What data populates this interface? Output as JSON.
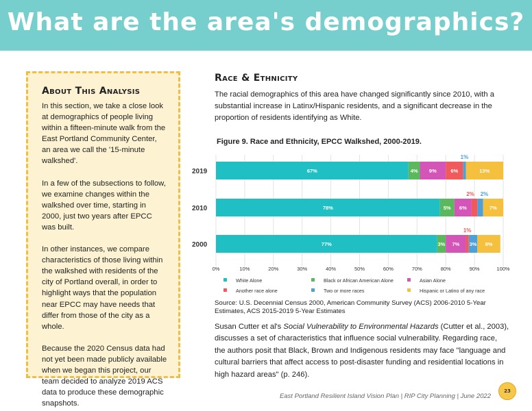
{
  "header": {
    "title": "What are the area's demographics?"
  },
  "sidebar": {
    "heading": "About This Analysis",
    "paragraphs": [
      "In this section, we take a close look at demographics of people living within a fifteen-minute walk from the East Portland Community Center, an area we call the '15-minute walkshed'.",
      "In a few of the subsections to follow, we examine changes within the walkshed over time, starting in 2000, just two years after EPCC was built.",
      "In other instances, we compare characteristics of those living within the walkshed with residents of the city of Portland overall, in order to highlight ways that the population near EPCC may have needs that differ from those of the city as a whole.",
      "Because the 2020 Census data had not yet been made publicly available when we began this project, our team decided to analyze 2019 ACS data to produce these demographic snapshots."
    ]
  },
  "main": {
    "heading": "Race & Ethnicity",
    "intro": "The racial demographics of this area have changed significantly since 2010, with a substantial increase in Latinx/Hispanic residents, and a significant decrease in the proportion of residents identifying as White.",
    "figure_title": "Figure 9.  Race and Ethnicity, EPCC Walkshed, 2000-2019.",
    "source": "Source: U.S. Decennial Census 2000, American Community Survey (ACS) 2006-2010 5-Year Estimates, ACS 2015-2019 5-Year Estimates",
    "body_pre": "Susan Cutter et al's ",
    "body_em": "Social Vulnerability to Environmental Hazards",
    "body_post": " (Cutter et al., 2003), discusses a set of characteristics that influence social vulnerability. Regarding race, the authors posit that Black, Brown and Indigenous residents may face \"language and cultural barriers that affect access to post-disaster funding and residential locations in high hazard areas\" (p. 246)."
  },
  "footer": {
    "text": "East Portland Resilient Island Vision Plan | RIP City Planning | June 2022",
    "page": "23"
  },
  "chart_data": {
    "type": "bar",
    "orientation": "horizontal",
    "stacked": true,
    "title": "Race and Ethnicity, EPCC Walkshed, 2000-2019.",
    "categories": [
      "2019",
      "2010",
      "2000"
    ],
    "xlim": [
      0,
      100
    ],
    "x_ticks": [
      "0%",
      "10%",
      "20%",
      "30%",
      "40%",
      "50%",
      "60%",
      "70%",
      "80%",
      "90%",
      "100%"
    ],
    "series": [
      {
        "name": "White Alone",
        "color": "#1fbfc4",
        "values": [
          67,
          78,
          77
        ],
        "labels": [
          "67%",
          "78%",
          "77%"
        ]
      },
      {
        "name": "Black or African American Alone",
        "color": "#5cb85c",
        "values": [
          4,
          5,
          3
        ],
        "labels": [
          "4%",
          "5%",
          "3%"
        ]
      },
      {
        "name": "Asian Alone",
        "color": "#d455b8",
        "values": [
          9,
          6,
          7
        ],
        "labels": [
          "9%",
          "6%",
          "7%"
        ]
      },
      {
        "name": "Another race alone",
        "color": "#f05a5a",
        "values": [
          6,
          2,
          1
        ],
        "labels": [
          "6%",
          "2%",
          "1%"
        ]
      },
      {
        "name": "Two or more races",
        "color": "#4f9fd9",
        "values": [
          1,
          2,
          3
        ],
        "labels": [
          "1%",
          "2%",
          "3%"
        ]
      },
      {
        "name": "Hispanic or Latino of any race",
        "color": "#f6c03f",
        "values": [
          13,
          7,
          8
        ],
        "labels": [
          "13%",
          "7%",
          "8%"
        ]
      }
    ],
    "legend": [
      "White Alone",
      "Black or African American Alone",
      "Asian Alone",
      "Another race alone",
      "Two or more races",
      "Hispanic or Latino of any race"
    ],
    "legend_position": "bottom"
  }
}
